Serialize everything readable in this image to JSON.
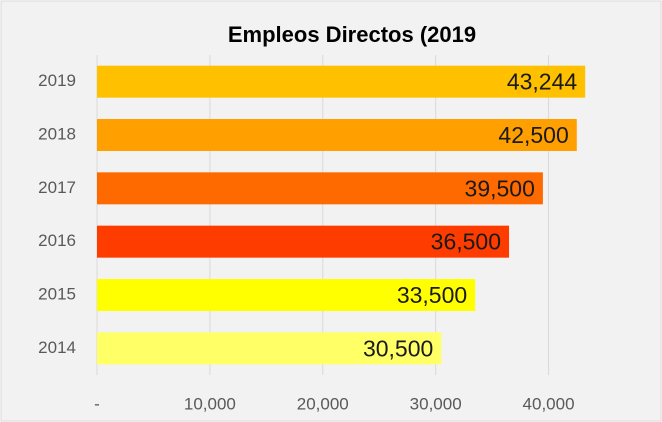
{
  "chart_data": {
    "type": "barh",
    "title": "Empleos Directos (2019",
    "categories": [
      "2019",
      "2018",
      "2017",
      "2016",
      "2015",
      "2014"
    ],
    "values": [
      43244,
      42500,
      39500,
      36500,
      33500,
      30500
    ],
    "value_labels": [
      "43,244",
      "42,500",
      "39,500",
      "36,500",
      "33,500",
      "30,500"
    ],
    "colors": [
      "#ffc000",
      "#ff9f00",
      "#ff6a00",
      "#ff3c00",
      "#ffff00",
      "#ffff66"
    ],
    "xlim": [
      0,
      45000
    ],
    "xticks": [
      {
        "value": 0,
        "label": "-"
      },
      {
        "value": 10000,
        "label": "10,000"
      },
      {
        "value": 20000,
        "label": "20,000"
      },
      {
        "value": 30000,
        "label": "30,000"
      },
      {
        "value": 40000,
        "label": "40,000"
      }
    ],
    "grid": true
  }
}
